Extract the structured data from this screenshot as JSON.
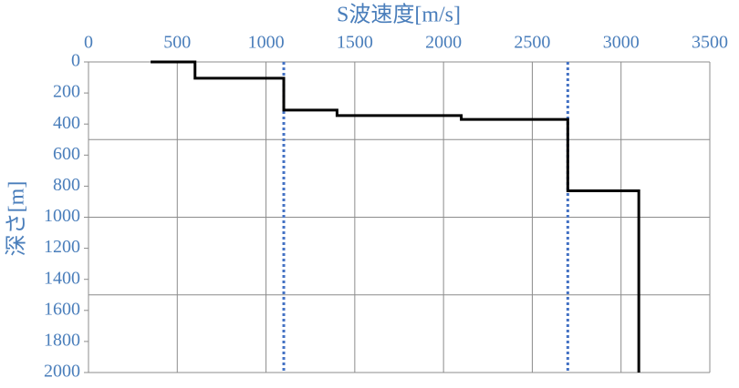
{
  "chart_data": {
    "type": "line",
    "xlabel": "S波速度[m/s]",
    "ylabel": "深さ[m]",
    "xlim": [
      0,
      3500
    ],
    "xticks": [
      0,
      500,
      1000,
      1500,
      2000,
      2500,
      3000,
      3500
    ],
    "ylim": [
      0,
      2000
    ],
    "y_inverted": true,
    "yticks": [
      0,
      200,
      400,
      600,
      800,
      1000,
      1200,
      1400,
      1600,
      1800,
      2000
    ],
    "ygrid": [
      500,
      1000,
      1500
    ],
    "grid": true,
    "xaxis_position": "top",
    "series": [
      {
        "color": "#000000",
        "x": [
          350,
          600,
          600,
          1100,
          1100,
          1400,
          1400,
          2100,
          2100,
          2700,
          2700,
          3100,
          3100
        ],
        "y": [
          0,
          0,
          105,
          105,
          310,
          310,
          345,
          345,
          370,
          370,
          830,
          830,
          2000
        ]
      }
    ],
    "vlines": [
      {
        "x": 1100,
        "color": "#4472c4"
      },
      {
        "x": 2700,
        "color": "#4472c4"
      }
    ]
  }
}
